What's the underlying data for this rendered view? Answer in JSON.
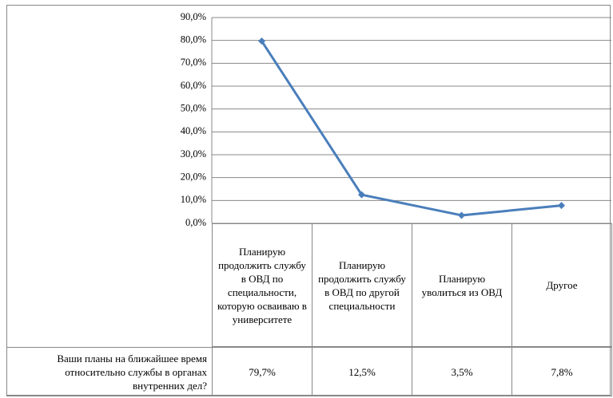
{
  "chart_data": {
    "type": "line",
    "categories": [
      "Планирую продолжить службу в ОВД по специальности, которую осваиваю в университете",
      "Планирую продолжить службу в ОВД по другой специальности",
      "Планирую уволиться из ОВД",
      "Другое"
    ],
    "series": [
      {
        "name": "Ваши планы на ближайшее время относительно службы в органах внутренних дел?",
        "color": "#4a7ebb",
        "values": [
          79.7,
          12.5,
          3.5,
          7.8
        ],
        "value_labels": [
          "79,7%",
          "12,5%",
          "3,5%",
          "7,8%"
        ]
      }
    ],
    "ylim": [
      0,
      90
    ],
    "yticks": [
      {
        "value": 0,
        "label": "0,0%"
      },
      {
        "value": 10,
        "label": "10,0%"
      },
      {
        "value": 20,
        "label": "20,0%"
      },
      {
        "value": 30,
        "label": "30,0%"
      },
      {
        "value": 40,
        "label": "40,0%"
      },
      {
        "value": 50,
        "label": "50,0%"
      },
      {
        "value": 60,
        "label": "60,0%"
      },
      {
        "value": 70,
        "label": "70,0%"
      },
      {
        "value": 80,
        "label": "80,0%"
      },
      {
        "value": 90,
        "label": "90,0%"
      }
    ],
    "grid": true
  }
}
